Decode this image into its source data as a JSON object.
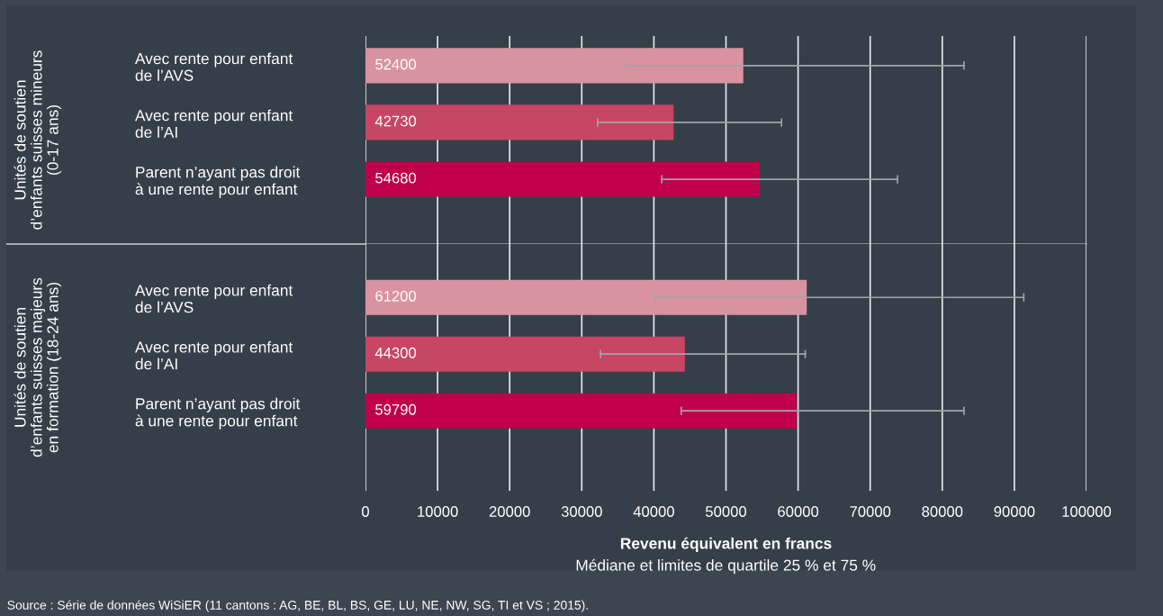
{
  "chart_data": [
    {
      "type": "bar",
      "orientation": "horizontal",
      "tick_labels": "y",
      "categories": [
        "Avec rente pour enfant\nde l’AVS",
        "Avec rente pour enfant\nde l’AI",
        "Parent n’ayant pas droit\nà une rente pour enfant"
      ],
      "values": [
        52400,
        42730,
        54680
      ],
      "colors": [
        "#d9939e",
        "#c64663",
        "#c0004a"
      ],
      "errors": [
        [
          36100,
          83000
        ],
        [
          32200,
          57700
        ],
        [
          41100,
          73800
        ]
      ],
      "data_labels": true,
      "xlim": [
        0,
        100000
      ],
      "xticks": [
        0,
        10000,
        20000,
        30000,
        40000,
        50000,
        60000,
        70000,
        80000,
        90000,
        100000
      ],
      "grid": "x",
      "annotations": [
        "Unités de soutien\nd’enfants suisses mineurs\n(0-17 ans)"
      ]
    },
    {
      "type": "bar",
      "orientation": "horizontal",
      "categories": [
        "Avec rente pour enfant\nde l’AVS",
        "Avec rente pour enfant\nde l’AI",
        "Parent n’ayant pas droit\nà une rente pour enfant"
      ],
      "values": [
        61200,
        44300,
        59790
      ],
      "colors": [
        "#d9939e",
        "#c64663",
        "#c0004a"
      ],
      "errors": [
        [
          40200,
          91300
        ],
        [
          32600,
          61000
        ],
        [
          43800,
          83000
        ]
      ],
      "data_labels": true,
      "xlim": [
        0,
        100000
      ],
      "xticks": [
        0,
        10000,
        20000,
        30000,
        40000,
        50000,
        60000,
        70000,
        80000,
        90000,
        100000
      ],
      "grid": "x",
      "xlabel": "Revenu équivalent en francs",
      "annotations": [
        "Unités de soutien\nd’enfants suisses majeurs\nen formation (18-24 ans)",
        "Médiane et limites de quartile 25 % et 75 %",
        "Source : Série de données WiSiER (11 cantons : AG, BE, BL, BS, GE, LU, NE, NW, SG, TI et VS ; 2015)."
      ]
    }
  ]
}
